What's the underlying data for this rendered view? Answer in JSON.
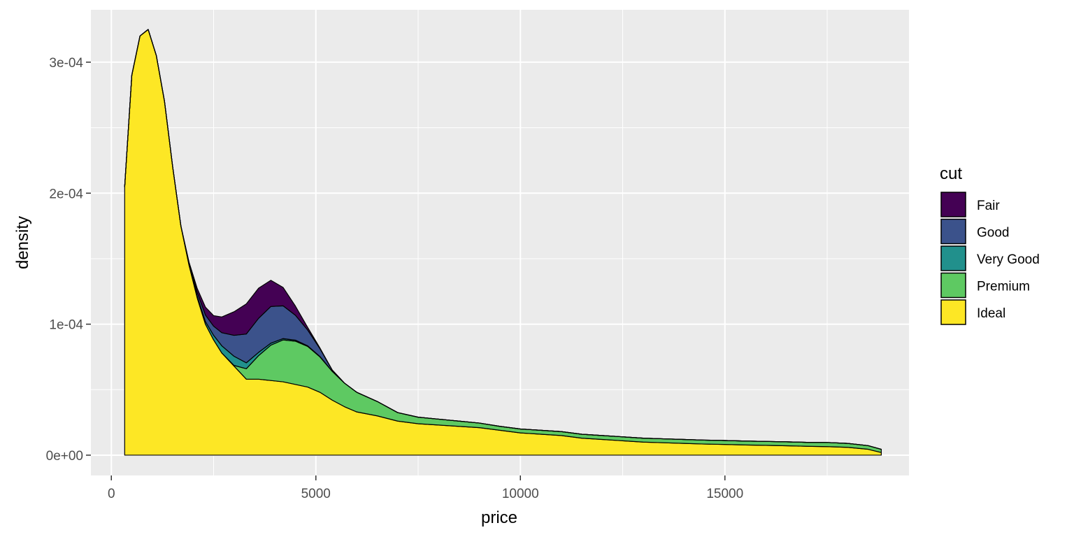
{
  "chart_data": {
    "type": "area",
    "subtype": "stacked-density",
    "title": "",
    "xlabel": "price",
    "ylabel": "density",
    "xlim": [
      -500,
      19500
    ],
    "ylim": [
      -1.55e-05,
      0.00034
    ],
    "x_ticks": [
      0,
      5000,
      10000,
      15000
    ],
    "x_tick_labels": [
      "0",
      "5000",
      "10000",
      "15000"
    ],
    "y_ticks": [
      0,
      0.0001,
      0.0002,
      0.0003
    ],
    "y_tick_labels": [
      "0e+00",
      "1e-04",
      "2e-04",
      "3e-04"
    ],
    "grid": true,
    "legend_title": "cut",
    "legend_position": "right",
    "x": [
      326,
      500,
      700,
      900,
      1100,
      1300,
      1500,
      1700,
      1900,
      2100,
      2300,
      2500,
      2700,
      3000,
      3300,
      3600,
      3900,
      4200,
      4500,
      4800,
      5100,
      5400,
      5700,
      6000,
      6500,
      7000,
      7500,
      8000,
      8500,
      9000,
      9500,
      10000,
      10500,
      11000,
      11500,
      12000,
      12500,
      13000,
      13500,
      14000,
      14500,
      15000,
      15500,
      16000,
      16500,
      17000,
      17500,
      18000,
      18500,
      18823
    ],
    "series": [
      {
        "name": "Fair",
        "color": "#440154",
        "values": [
          0,
          0,
          0,
          0,
          0,
          0,
          0,
          0,
          8e-07,
          3e-06,
          6e-06,
          8e-06,
          1.2e-05,
          1.8e-05,
          2.3e-05,
          2.3e-05,
          2e-05,
          1.4e-05,
          7e-06,
          2e-06,
          5e-07,
          0,
          0,
          0,
          0,
          0,
          0,
          0,
          0,
          0,
          0,
          0,
          0,
          0,
          0,
          0,
          0,
          0,
          0,
          0,
          0,
          0,
          0,
          0,
          0,
          0,
          0,
          0,
          0,
          0
        ]
      },
      {
        "name": "Good",
        "color": "#3b528b",
        "values": [
          0,
          0,
          0,
          0,
          0,
          0,
          0,
          0,
          1e-06,
          3e-06,
          5e-06,
          7e-06,
          1e-05,
          1.6e-05,
          2.2e-05,
          2.6e-05,
          2.8e-05,
          2.5e-05,
          1.9e-05,
          1.2e-05,
          6e-06,
          1e-06,
          0,
          0,
          0,
          0,
          0,
          0,
          0,
          0,
          0,
          0,
          0,
          0,
          0,
          0,
          0,
          0,
          0,
          0,
          0,
          0,
          0,
          0,
          0,
          0,
          0,
          0,
          0,
          0
        ]
      },
      {
        "name": "Very Good",
        "color": "#21908c",
        "values": [
          0,
          0,
          0,
          0,
          0,
          0,
          0,
          0,
          5e-07,
          1.2e-06,
          2e-06,
          3.5e-06,
          5.5e-06,
          7e-06,
          4.5e-06,
          2.5e-06,
          1.5e-06,
          1e-06,
          8e-07,
          5e-07,
          3e-07,
          0,
          0,
          0,
          0,
          0,
          0,
          0,
          0,
          0,
          0,
          0,
          0,
          0,
          0,
          0,
          0,
          0,
          0,
          0,
          0,
          0,
          0,
          0,
          0,
          0,
          0,
          0,
          0,
          0
        ]
      },
      {
        "name": "Premium",
        "color": "#5ec962",
        "values": [
          0,
          0,
          0,
          0,
          0,
          0,
          0,
          0,
          0,
          0,
          0,
          0,
          0,
          5e-07,
          8e-06,
          1.8e-05,
          2.7e-05,
          3.2e-05,
          3.3e-05,
          3.1e-05,
          2.7e-05,
          2.2e-05,
          1.8e-05,
          1.5e-05,
          1.1e-05,
          6.5e-06,
          5e-06,
          4.5e-06,
          4e-06,
          3.5e-06,
          3e-06,
          3e-06,
          3e-06,
          3e-06,
          3e-06,
          3e-06,
          3e-06,
          3e-06,
          3e-06,
          3e-06,
          3e-06,
          3e-06,
          3e-06,
          3e-06,
          3e-06,
          3e-06,
          3.2e-06,
          3e-06,
          2.8e-06,
          2.5e-06
        ]
      },
      {
        "name": "Ideal",
        "color": "#fde725",
        "values": [
          0.000205,
          0.00029,
          0.00032,
          0.000325,
          0.000305,
          0.00027,
          0.00022,
          0.000175,
          0.000145,
          0.00012,
          0.0001,
          8.8e-05,
          7.8e-05,
          6.8e-05,
          5.8e-05,
          5.8e-05,
          5.7e-05,
          5.6e-05,
          5.4e-05,
          5.2e-05,
          4.8e-05,
          4.2e-05,
          3.7e-05,
          3.3e-05,
          3e-05,
          2.6e-05,
          2.4e-05,
          2.3e-05,
          2.2e-05,
          2.1e-05,
          1.9e-05,
          1.7e-05,
          1.6e-05,
          1.5e-05,
          1.3e-05,
          1.2e-05,
          1.1e-05,
          1e-05,
          9.5e-06,
          9e-06,
          8.5e-06,
          8.2e-06,
          7.8e-06,
          7.5e-06,
          7.2e-06,
          6.8e-06,
          6.5e-06,
          6e-06,
          4.5e-06,
          2e-06
        ]
      }
    ]
  }
}
